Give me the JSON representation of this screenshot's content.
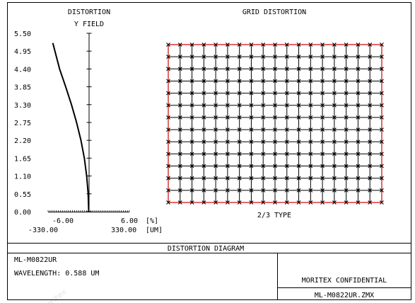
{
  "app": {
    "title": "DISTORTION DIAGRAM"
  },
  "distortion_plot": {
    "title_line1": "DISTORTION",
    "title_line2": "Y FIELD",
    "x_min_pct": "-6.00",
    "x_max_pct": "6.00",
    "x_unit_pct": "[%]",
    "x_min_um": "-330.00",
    "x_max_um": "330.00",
    "x_unit_um": "[UM]"
  },
  "grid_plot": {
    "title": "GRID DISTORTION",
    "caption": "2/3 TYPE"
  },
  "footer": {
    "diagram_title": "DISTORTION DIAGRAM",
    "lens_name": "ML-M0822UR",
    "wavelength": "WAVELENGTH: 0.588 UM",
    "confidential": "MORITEX CONFIDENTIAL",
    "file_name": "ML-M0822UR.ZMX"
  },
  "watermark": {
    "text": "moritex"
  },
  "colors": {
    "ideal_grid": "#000000",
    "real_grid": "#d00000",
    "frame": "#000000"
  },
  "chart_data": [
    {
      "type": "line",
      "title": "DISTORTION",
      "ylabel": "Y FIELD",
      "y_ticks": [
        "0.00",
        "0.55",
        "1.10",
        "1.65",
        "2.20",
        "2.75",
        "3.30",
        "3.85",
        "4.40",
        "4.95",
        "5.50"
      ],
      "xlim_pct": [
        -6.0,
        6.0
      ],
      "xlim_um": [
        -330.0,
        330.0
      ],
      "ylim": [
        0,
        5.5
      ],
      "series": [
        {
          "x": [
            0.0,
            -0.08,
            -0.3,
            -0.65,
            -1.15,
            -1.8,
            -2.55,
            -3.4,
            -4.3,
            -5.3
          ],
          "y": [
            0.0,
            0.55,
            1.1,
            1.65,
            2.2,
            2.75,
            3.3,
            3.85,
            4.4,
            5.2
          ]
        }
      ]
    },
    {
      "type": "grid_distortion",
      "title": "GRID DISTORTION",
      "caption": "2/3 TYPE",
      "grid_columns": 18,
      "grid_rows": 13
    }
  ]
}
